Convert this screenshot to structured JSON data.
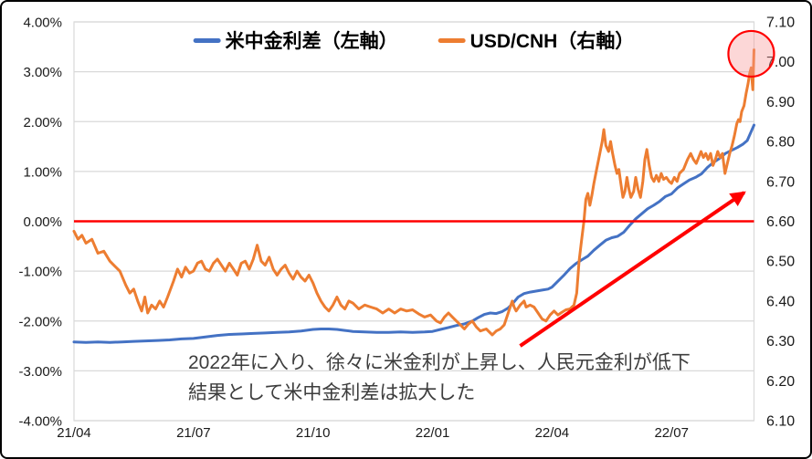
{
  "colors": {
    "rate_diff_line": "#4472C4",
    "usdcnh_line": "#ED7D31",
    "zero_line": "#FF0000",
    "arrow": "#FF0000",
    "circle_stroke": "#FF0000",
    "circle_fill": "rgba(248,150,150,0.38)",
    "gridline": "#D9D9D9",
    "axis_text": "#1a1a1a"
  },
  "annotation": {
    "line1": "2022年に入り、徐々に米金利が上昇し、人民元金利が低下",
    "line2": "結果として米中金利差は拡大した"
  },
  "chart_data": {
    "type": "line",
    "title": "",
    "grid": "horizontal",
    "legend_position": "top",
    "x_unit": "months since 2021-04",
    "x_range": [
      0,
      17.07
    ],
    "x_axis": {
      "tick_values": [
        0,
        3,
        6,
        9,
        12,
        15
      ],
      "tick_labels": [
        "21/04",
        "21/07",
        "21/10",
        "22/01",
        "22/04",
        "22/07"
      ]
    },
    "left_axis": {
      "range": [
        -4,
        4
      ],
      "tick_values": [
        4,
        3,
        2,
        1,
        0,
        -1,
        -2,
        -3,
        -4
      ],
      "tick_labels": [
        "4.00%",
        "3.00%",
        "2.00%",
        "1.00%",
        "0.00%",
        "-1.00%",
        "-2.00%",
        "-3.00%",
        "-4.00%"
      ]
    },
    "right_axis": {
      "range": [
        6.1,
        7.1
      ],
      "tick_values": [
        7.1,
        7.0,
        6.9,
        6.8,
        6.7,
        6.6,
        6.5,
        6.4,
        6.3,
        6.2,
        6.1
      ],
      "tick_labels": [
        "7.10",
        "7.00",
        "6.90",
        "6.80",
        "6.70",
        "6.60",
        "6.50",
        "6.40",
        "6.30",
        "6.20",
        "6.10"
      ]
    },
    "zero_line": {
      "axis": "left",
      "value": 0
    },
    "arrow": {
      "from": [
        11.2,
        -2.5
      ],
      "to": [
        17.05,
        0.7
      ],
      "axis": "left"
    },
    "highlight_circle": {
      "month": 17.0,
      "value": 7.02,
      "axis": "right",
      "radius_px": 25
    },
    "series": [
      {
        "name": "米中金利差（左軸）",
        "axis": "left",
        "color": "#4472C4",
        "points": [
          [
            0.0,
            -2.42
          ],
          [
            0.3,
            -2.43
          ],
          [
            0.6,
            -2.42
          ],
          [
            0.9,
            -2.43
          ],
          [
            1.2,
            -2.42
          ],
          [
            1.5,
            -2.41
          ],
          [
            1.8,
            -2.4
          ],
          [
            2.1,
            -2.39
          ],
          [
            2.4,
            -2.38
          ],
          [
            2.7,
            -2.36
          ],
          [
            3.0,
            -2.35
          ],
          [
            3.3,
            -2.32
          ],
          [
            3.6,
            -2.29
          ],
          [
            3.9,
            -2.27
          ],
          [
            4.2,
            -2.26
          ],
          [
            4.5,
            -2.25
          ],
          [
            4.8,
            -2.24
          ],
          [
            5.1,
            -2.23
          ],
          [
            5.4,
            -2.22
          ],
          [
            5.7,
            -2.2
          ],
          [
            6.0,
            -2.17
          ],
          [
            6.2,
            -2.16
          ],
          [
            6.4,
            -2.16
          ],
          [
            6.6,
            -2.17
          ],
          [
            6.8,
            -2.19
          ],
          [
            7.0,
            -2.21
          ],
          [
            7.3,
            -2.22
          ],
          [
            7.6,
            -2.23
          ],
          [
            7.9,
            -2.23
          ],
          [
            8.2,
            -2.22
          ],
          [
            8.5,
            -2.23
          ],
          [
            8.8,
            -2.22
          ],
          [
            9.0,
            -2.21
          ],
          [
            9.2,
            -2.17
          ],
          [
            9.4,
            -2.13
          ],
          [
            9.6,
            -2.09
          ],
          [
            9.8,
            -2.06
          ],
          [
            10.0,
            -2.0
          ],
          [
            10.15,
            -1.93
          ],
          [
            10.3,
            -1.87
          ],
          [
            10.45,
            -1.84
          ],
          [
            10.6,
            -1.85
          ],
          [
            10.75,
            -1.81
          ],
          [
            10.9,
            -1.74
          ],
          [
            11.0,
            -1.66
          ],
          [
            11.15,
            -1.52
          ],
          [
            11.3,
            -1.45
          ],
          [
            11.45,
            -1.42
          ],
          [
            11.6,
            -1.4
          ],
          [
            11.75,
            -1.38
          ],
          [
            11.9,
            -1.36
          ],
          [
            12.0,
            -1.32
          ],
          [
            12.15,
            -1.2
          ],
          [
            12.3,
            -1.08
          ],
          [
            12.45,
            -0.95
          ],
          [
            12.6,
            -0.85
          ],
          [
            12.75,
            -0.77
          ],
          [
            12.9,
            -0.7
          ],
          [
            13.05,
            -0.58
          ],
          [
            13.2,
            -0.48
          ],
          [
            13.35,
            -0.38
          ],
          [
            13.5,
            -0.33
          ],
          [
            13.65,
            -0.3
          ],
          [
            13.8,
            -0.22
          ],
          [
            13.95,
            -0.08
          ],
          [
            14.1,
            0.05
          ],
          [
            14.25,
            0.15
          ],
          [
            14.4,
            0.25
          ],
          [
            14.55,
            0.32
          ],
          [
            14.7,
            0.4
          ],
          [
            14.85,
            0.5
          ],
          [
            15.0,
            0.55
          ],
          [
            15.15,
            0.67
          ],
          [
            15.3,
            0.75
          ],
          [
            15.45,
            0.83
          ],
          [
            15.6,
            0.88
          ],
          [
            15.75,
            0.95
          ],
          [
            15.9,
            1.08
          ],
          [
            16.05,
            1.18
          ],
          [
            16.2,
            1.26
          ],
          [
            16.35,
            1.36
          ],
          [
            16.5,
            1.42
          ],
          [
            16.65,
            1.48
          ],
          [
            16.8,
            1.55
          ],
          [
            16.9,
            1.62
          ],
          [
            17.0,
            1.8
          ],
          [
            17.07,
            1.93
          ]
        ]
      },
      {
        "name": "USD/CNH（右軸）",
        "axis": "right",
        "color": "#ED7D31",
        "points": [
          [
            0.0,
            6.575
          ],
          [
            0.1,
            6.555
          ],
          [
            0.2,
            6.565
          ],
          [
            0.3,
            6.545
          ],
          [
            0.45,
            6.555
          ],
          [
            0.6,
            6.52
          ],
          [
            0.75,
            6.525
          ],
          [
            0.9,
            6.5
          ],
          [
            1.0,
            6.49
          ],
          [
            1.15,
            6.475
          ],
          [
            1.3,
            6.44
          ],
          [
            1.4,
            6.42
          ],
          [
            1.5,
            6.43
          ],
          [
            1.6,
            6.4
          ],
          [
            1.7,
            6.375
          ],
          [
            1.78,
            6.41
          ],
          [
            1.85,
            6.37
          ],
          [
            1.95,
            6.39
          ],
          [
            2.05,
            6.38
          ],
          [
            2.15,
            6.4
          ],
          [
            2.25,
            6.385
          ],
          [
            2.35,
            6.41
          ],
          [
            2.5,
            6.45
          ],
          [
            2.6,
            6.48
          ],
          [
            2.7,
            6.46
          ],
          [
            2.8,
            6.485
          ],
          [
            2.9,
            6.47
          ],
          [
            3.0,
            6.475
          ],
          [
            3.1,
            6.495
          ],
          [
            3.2,
            6.5
          ],
          [
            3.3,
            6.48
          ],
          [
            3.4,
            6.475
          ],
          [
            3.5,
            6.495
          ],
          [
            3.6,
            6.505
          ],
          [
            3.7,
            6.49
          ],
          [
            3.8,
            6.475
          ],
          [
            3.9,
            6.495
          ],
          [
            4.0,
            6.48
          ],
          [
            4.1,
            6.465
          ],
          [
            4.2,
            6.495
          ],
          [
            4.3,
            6.5
          ],
          [
            4.4,
            6.48
          ],
          [
            4.5,
            6.505
          ],
          [
            4.6,
            6.54
          ],
          [
            4.7,
            6.5
          ],
          [
            4.8,
            6.49
          ],
          [
            4.9,
            6.51
          ],
          [
            5.0,
            6.48
          ],
          [
            5.1,
            6.465
          ],
          [
            5.2,
            6.48
          ],
          [
            5.3,
            6.49
          ],
          [
            5.4,
            6.47
          ],
          [
            5.5,
            6.455
          ],
          [
            5.6,
            6.475
          ],
          [
            5.7,
            6.46
          ],
          [
            5.8,
            6.45
          ],
          [
            5.9,
            6.465
          ],
          [
            6.0,
            6.445
          ],
          [
            6.1,
            6.42
          ],
          [
            6.2,
            6.4
          ],
          [
            6.3,
            6.385
          ],
          [
            6.4,
            6.375
          ],
          [
            6.5,
            6.39
          ],
          [
            6.6,
            6.41
          ],
          [
            6.7,
            6.39
          ],
          [
            6.8,
            6.38
          ],
          [
            6.9,
            6.4
          ],
          [
            7.0,
            6.395
          ],
          [
            7.15,
            6.38
          ],
          [
            7.3,
            6.39
          ],
          [
            7.45,
            6.385
          ],
          [
            7.6,
            6.38
          ],
          [
            7.75,
            6.37
          ],
          [
            7.9,
            6.38
          ],
          [
            8.05,
            6.37
          ],
          [
            8.2,
            6.38
          ],
          [
            8.35,
            6.375
          ],
          [
            8.5,
            6.378
          ],
          [
            8.65,
            6.368
          ],
          [
            8.8,
            6.36
          ],
          [
            8.95,
            6.365
          ],
          [
            9.1,
            6.35
          ],
          [
            9.2,
            6.345
          ],
          [
            9.3,
            6.36
          ],
          [
            9.4,
            6.37
          ],
          [
            9.5,
            6.36
          ],
          [
            9.6,
            6.35
          ],
          [
            9.7,
            6.34
          ],
          [
            9.8,
            6.33
          ],
          [
            9.9,
            6.342
          ],
          [
            10.0,
            6.35
          ],
          [
            10.1,
            6.335
          ],
          [
            10.2,
            6.325
          ],
          [
            10.35,
            6.33
          ],
          [
            10.5,
            6.315
          ],
          [
            10.6,
            6.325
          ],
          [
            10.7,
            6.33
          ],
          [
            10.8,
            6.34
          ],
          [
            10.9,
            6.37
          ],
          [
            11.0,
            6.4
          ],
          [
            11.05,
            6.385
          ],
          [
            11.1,
            6.375
          ],
          [
            11.2,
            6.39
          ],
          [
            11.3,
            6.4
          ],
          [
            11.35,
            6.385
          ],
          [
            11.45,
            6.39
          ],
          [
            11.55,
            6.385
          ],
          [
            11.65,
            6.37
          ],
          [
            11.75,
            6.355
          ],
          [
            11.85,
            6.35
          ],
          [
            11.95,
            6.365
          ],
          [
            12.05,
            6.375
          ],
          [
            12.15,
            6.365
          ],
          [
            12.25,
            6.372
          ],
          [
            12.35,
            6.378
          ],
          [
            12.45,
            6.38
          ],
          [
            12.55,
            6.39
          ],
          [
            12.62,
            6.42
          ],
          [
            12.68,
            6.5
          ],
          [
            12.74,
            6.55
          ],
          [
            12.8,
            6.6
          ],
          [
            12.85,
            6.655
          ],
          [
            12.9,
            6.67
          ],
          [
            12.95,
            6.64
          ],
          [
            13.0,
            6.665
          ],
          [
            13.05,
            6.695
          ],
          [
            13.12,
            6.73
          ],
          [
            13.2,
            6.77
          ],
          [
            13.26,
            6.8
          ],
          [
            13.3,
            6.83
          ],
          [
            13.35,
            6.79
          ],
          [
            13.42,
            6.775
          ],
          [
            13.47,
            6.8
          ],
          [
            13.52,
            6.77
          ],
          [
            13.58,
            6.74
          ],
          [
            13.63,
            6.72
          ],
          [
            13.68,
            6.73
          ],
          [
            13.72,
            6.7
          ],
          [
            13.78,
            6.66
          ],
          [
            13.83,
            6.675
          ],
          [
            13.88,
            6.71
          ],
          [
            13.93,
            6.68
          ],
          [
            13.98,
            6.66
          ],
          [
            14.05,
            6.675
          ],
          [
            14.1,
            6.71
          ],
          [
            14.16,
            6.68
          ],
          [
            14.22,
            6.66
          ],
          [
            14.28,
            6.7
          ],
          [
            14.33,
            6.755
          ],
          [
            14.38,
            6.78
          ],
          [
            14.44,
            6.74
          ],
          [
            14.5,
            6.71
          ],
          [
            14.56,
            6.7
          ],
          [
            14.62,
            6.715
          ],
          [
            14.68,
            6.7
          ],
          [
            14.74,
            6.72
          ],
          [
            14.8,
            6.705
          ],
          [
            14.87,
            6.71
          ],
          [
            14.94,
            6.7
          ],
          [
            15.0,
            6.695
          ],
          [
            15.07,
            6.71
          ],
          [
            15.14,
            6.7
          ],
          [
            15.2,
            6.72
          ],
          [
            15.3,
            6.73
          ],
          [
            15.4,
            6.755
          ],
          [
            15.48,
            6.77
          ],
          [
            15.55,
            6.755
          ],
          [
            15.62,
            6.745
          ],
          [
            15.68,
            6.76
          ],
          [
            15.74,
            6.775
          ],
          [
            15.8,
            6.76
          ],
          [
            15.86,
            6.77
          ],
          [
            15.92,
            6.755
          ],
          [
            15.98,
            6.77
          ],
          [
            16.04,
            6.74
          ],
          [
            16.1,
            6.755
          ],
          [
            16.16,
            6.775
          ],
          [
            16.22,
            6.76
          ],
          [
            16.28,
            6.77
          ],
          [
            16.34,
            6.72
          ],
          [
            16.4,
            6.745
          ],
          [
            16.46,
            6.77
          ],
          [
            16.52,
            6.79
          ],
          [
            16.58,
            6.815
          ],
          [
            16.64,
            6.845
          ],
          [
            16.68,
            6.855
          ],
          [
            16.72,
            6.85
          ],
          [
            16.76,
            6.875
          ],
          [
            16.82,
            6.89
          ],
          [
            16.87,
            6.92
          ],
          [
            16.92,
            6.945
          ],
          [
            16.96,
            6.97
          ],
          [
            17.0,
            6.985
          ],
          [
            17.02,
            6.955
          ],
          [
            17.04,
            6.93
          ],
          [
            17.07,
            7.03
          ]
        ]
      }
    ]
  }
}
